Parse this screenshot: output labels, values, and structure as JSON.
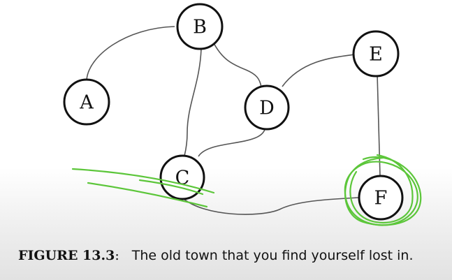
{
  "figure": {
    "nodes": [
      {
        "id": "A",
        "label": "A"
      },
      {
        "id": "B",
        "label": "B"
      },
      {
        "id": "C",
        "label": "C"
      },
      {
        "id": "D",
        "label": "D"
      },
      {
        "id": "E",
        "label": "E"
      },
      {
        "id": "F",
        "label": "F"
      }
    ],
    "edges": [
      {
        "from": "A",
        "to": "B"
      },
      {
        "from": "B",
        "to": "D"
      },
      {
        "from": "B",
        "to": "C"
      },
      {
        "from": "C",
        "to": "D"
      },
      {
        "from": "D",
        "to": "E"
      },
      {
        "from": "E",
        "to": "F"
      },
      {
        "from": "C",
        "to": "F"
      }
    ],
    "caption": {
      "label": "FIGURE 13.3",
      "separator": ":",
      "text": "The old town that you find yourself lost in."
    },
    "annotation": {
      "description": "green hand-drawn circle around F and strike lines near C",
      "color": "#5cc63a"
    }
  }
}
